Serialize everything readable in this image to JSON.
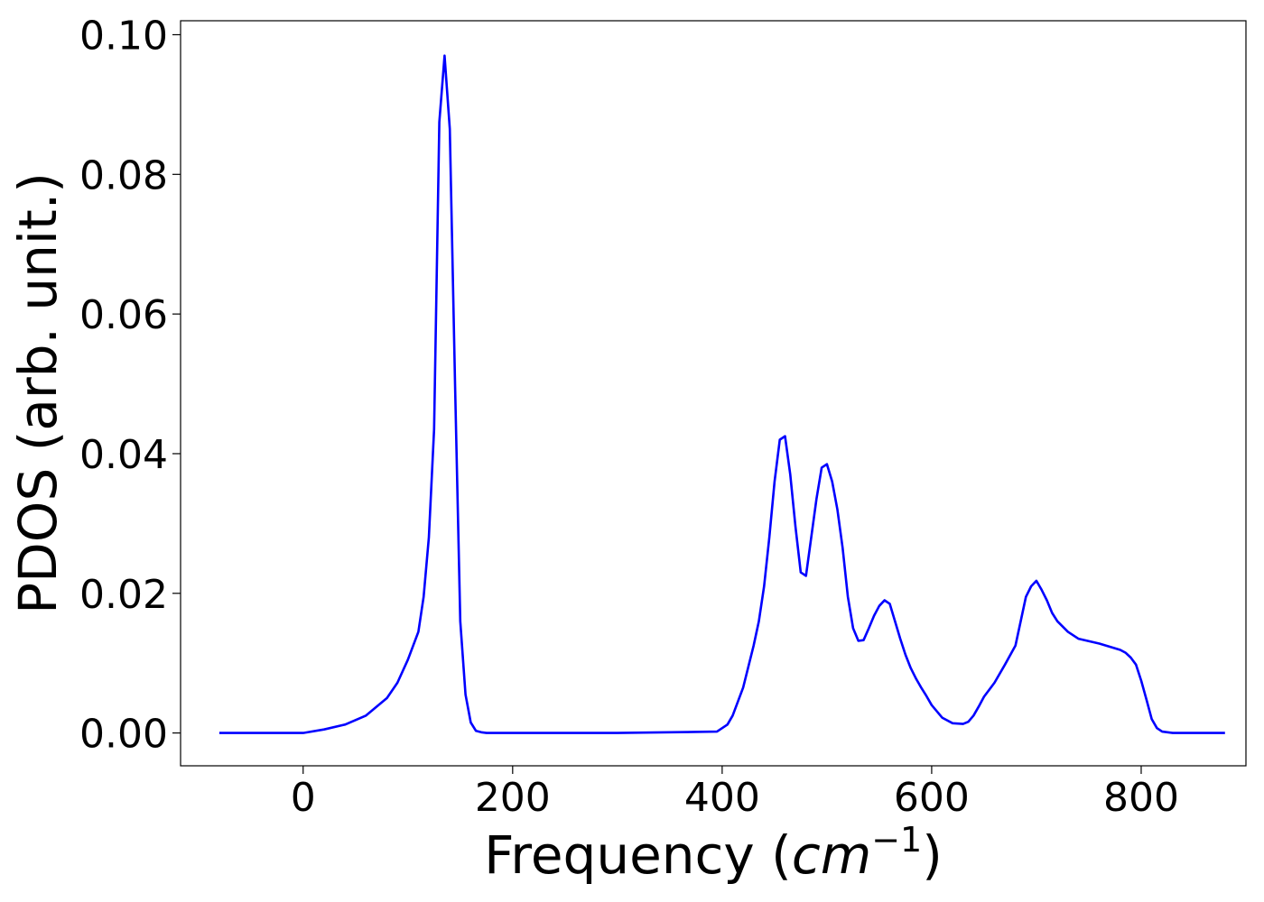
{
  "chart_data": {
    "type": "line",
    "title": "",
    "xlabel": "Frequency",
    "xlabel_unit": "cm",
    "xlabel_unit_exponent": "−1",
    "ylabel": "PDOS (arb. unit.)",
    "xlim": [
      -117,
      900
    ],
    "ylim": [
      -0.0047,
      0.102
    ],
    "xticks": [
      0,
      200,
      400,
      600,
      800
    ],
    "xtick_labels": [
      "0",
      "200",
      "400",
      "600",
      "800"
    ],
    "yticks": [
      0.0,
      0.02,
      0.04,
      0.06,
      0.08,
      0.1
    ],
    "ytick_labels": [
      "0.00",
      "0.02",
      "0.04",
      "0.06",
      "0.08",
      "0.10"
    ],
    "grid": false,
    "series": [
      {
        "color": "#0000ff",
        "x": [
          -80,
          -40,
          0,
          20,
          40,
          60,
          80,
          90,
          100,
          110,
          115,
          120,
          125,
          130,
          135,
          140,
          145,
          150,
          155,
          160,
          165,
          170,
          175,
          180,
          200,
          300,
          395,
          405,
          410,
          415,
          420,
          425,
          430,
          435,
          440,
          445,
          450,
          455,
          460,
          465,
          470,
          475,
          480,
          485,
          490,
          495,
          500,
          505,
          510,
          515,
          520,
          525,
          530,
          535,
          540,
          545,
          550,
          555,
          560,
          565,
          570,
          575,
          580,
          585,
          590,
          595,
          600,
          610,
          620,
          630,
          635,
          640,
          645,
          650,
          660,
          670,
          680,
          685,
          690,
          695,
          700,
          705,
          710,
          715,
          720,
          730,
          740,
          760,
          780,
          785,
          790,
          795,
          800,
          805,
          810,
          815,
          820,
          830,
          860,
          880
        ],
        "y": [
          0.0,
          0.0,
          0.0,
          0.0005,
          0.0012,
          0.0025,
          0.005,
          0.0072,
          0.0105,
          0.0145,
          0.0195,
          0.028,
          0.0435,
          0.0875,
          0.097,
          0.0865,
          0.05,
          0.016,
          0.0055,
          0.0015,
          0.0003,
          0.0001,
          0.0,
          0.0,
          0.0,
          0.0,
          0.0002,
          0.0012,
          0.0025,
          0.0045,
          0.0065,
          0.0095,
          0.0125,
          0.016,
          0.021,
          0.028,
          0.036,
          0.042,
          0.0425,
          0.037,
          0.0295,
          0.023,
          0.0225,
          0.028,
          0.0335,
          0.038,
          0.0385,
          0.036,
          0.032,
          0.0265,
          0.0195,
          0.015,
          0.0132,
          0.0133,
          0.015,
          0.0168,
          0.0182,
          0.019,
          0.0185,
          0.016,
          0.0135,
          0.0112,
          0.0093,
          0.0078,
          0.0065,
          0.0053,
          0.004,
          0.0022,
          0.0014,
          0.0013,
          0.0016,
          0.0025,
          0.0038,
          0.0052,
          0.0072,
          0.0098,
          0.0125,
          0.016,
          0.0195,
          0.021,
          0.0218,
          0.0205,
          0.019,
          0.0172,
          0.016,
          0.0145,
          0.0135,
          0.0128,
          0.0119,
          0.0115,
          0.0108,
          0.0098,
          0.0075,
          0.0048,
          0.002,
          0.0007,
          0.0002,
          0.0,
          0.0,
          0.0
        ]
      }
    ]
  }
}
